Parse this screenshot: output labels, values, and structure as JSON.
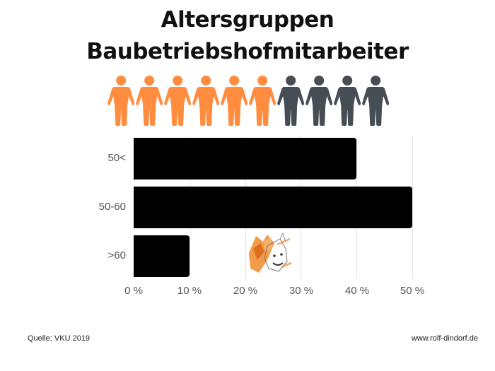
{
  "title": {
    "line1": "Altersgruppen",
    "line2": "Baubetriebshofmitarbeiter"
  },
  "pictogram": {
    "total": 10,
    "highlighted": 6,
    "colors": {
      "highlighted": "#ff8c3f",
      "normal": "#474d55"
    },
    "icon": "person-icon"
  },
  "chart_data": {
    "type": "bar",
    "orientation": "horizontal",
    "title": "Altersgruppen Baubetriebshofmitarbeiter",
    "categories": [
      "50<",
      "50-60",
      ">60"
    ],
    "values": [
      40,
      50,
      10
    ],
    "unit": "%",
    "xlabel": "",
    "ylabel": "",
    "xlim": [
      0,
      50
    ],
    "x_ticks": [
      "0 %",
      "10 %",
      "20 %",
      "30 %",
      "40 %",
      "50 %"
    ],
    "grid": true,
    "legend": false,
    "bar_color": "#000000"
  },
  "footer": {
    "source": "Quelle: VKU 2019",
    "website": "www.rolf-dindorf.de"
  }
}
